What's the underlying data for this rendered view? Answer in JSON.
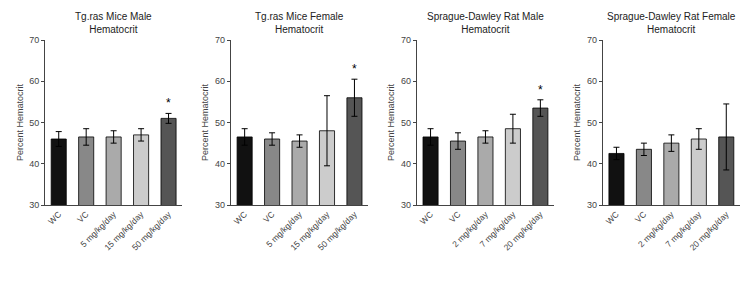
{
  "chart_data": [
    {
      "type": "bar",
      "title": "Tg.ras Mice Male\nHematocrit",
      "categories": [
        "WC",
        "VC",
        "5 mg/kg/day",
        "15 mg/kg/day",
        "50 mg/kg/day"
      ],
      "values": [
        46.0,
        46.5,
        46.5,
        47.0,
        51.0
      ],
      "errors": [
        1.8,
        2.0,
        1.5,
        1.5,
        1.2
      ],
      "colors": [
        "#111111",
        "#888888",
        "#aaaaaa",
        "#cccccc",
        "#555555"
      ],
      "annotations": [
        {
          "category": "50 mg/kg/day",
          "text": "*"
        }
      ],
      "y_label": "Percent Hematocrit",
      "ylim": [
        30,
        70
      ],
      "yticks": [
        30,
        40,
        50,
        60,
        70
      ],
      "grid": false
    },
    {
      "type": "bar",
      "title": "Tg.ras Mice Female\nHematocrit",
      "categories": [
        "WC",
        "VC",
        "5 mg/kg/day",
        "15 mg/kg/day",
        "50 mg/kg/day"
      ],
      "values": [
        46.5,
        46.0,
        45.5,
        48.0,
        56.0
      ],
      "errors": [
        2.0,
        1.5,
        1.5,
        8.5,
        4.5
      ],
      "colors": [
        "#111111",
        "#888888",
        "#aaaaaa",
        "#cccccc",
        "#555555"
      ],
      "annotations": [
        {
          "category": "50 mg/kg/day",
          "text": "*"
        }
      ],
      "y_label": "Percent Hematocrit",
      "ylim": [
        30,
        70
      ],
      "yticks": [
        30,
        40,
        50,
        60,
        70
      ],
      "grid": false
    },
    {
      "type": "bar",
      "title": "Sprague-Dawley Rat Male\nHematocrit",
      "categories": [
        "WC",
        "VC",
        "2 mg/kg/day",
        "7 mg/kg/day",
        "20 mg/kg/day"
      ],
      "values": [
        46.5,
        45.5,
        46.5,
        48.5,
        53.5
      ],
      "errors": [
        2.0,
        2.0,
        1.5,
        3.5,
        2.0
      ],
      "colors": [
        "#111111",
        "#888888",
        "#aaaaaa",
        "#cccccc",
        "#555555"
      ],
      "annotations": [
        {
          "category": "20 mg/kg/day",
          "text": "*"
        }
      ],
      "y_label": "Percent Hematocrit",
      "ylim": [
        30,
        70
      ],
      "yticks": [
        30,
        40,
        50,
        60,
        70
      ],
      "grid": false
    },
    {
      "type": "bar",
      "title": "Sprague-Dawley Rat Female\nHematocrit",
      "categories": [
        "WC",
        "VC",
        "2 mg/kg/day",
        "7 mg/kg/day",
        "20 mg/kg/day"
      ],
      "values": [
        42.5,
        43.5,
        45.0,
        46.0,
        46.5
      ],
      "errors": [
        1.5,
        1.5,
        2.0,
        2.5,
        8.0
      ],
      "colors": [
        "#111111",
        "#888888",
        "#aaaaaa",
        "#cccccc",
        "#555555"
      ],
      "y_label": "Percent Hematocrit",
      "ylim": [
        30,
        70
      ],
      "yticks": [
        30,
        40,
        50,
        60,
        70
      ],
      "grid": false
    }
  ]
}
